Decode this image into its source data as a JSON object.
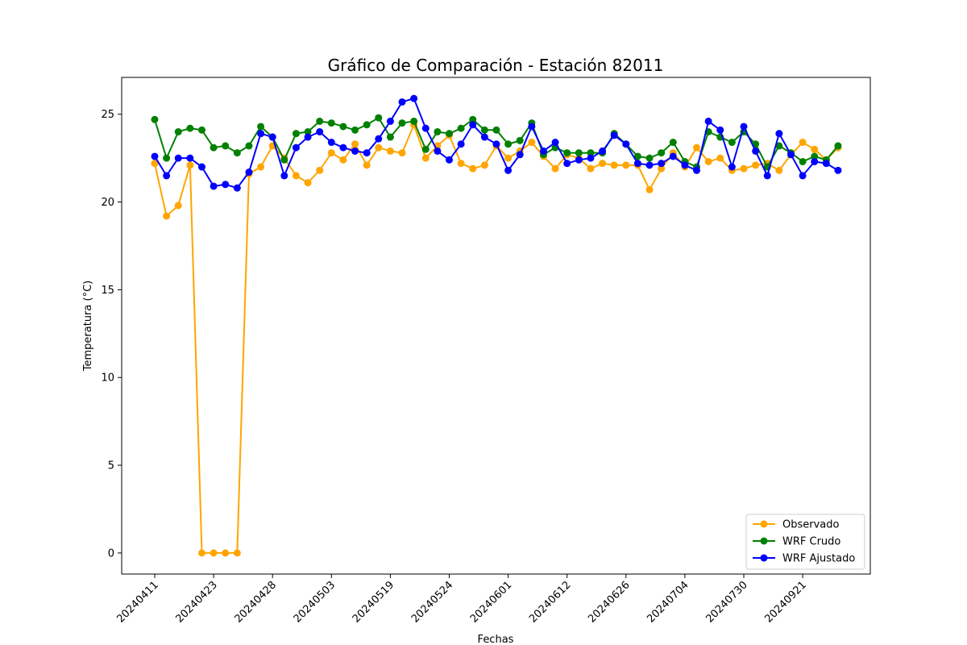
{
  "chart_data": {
    "type": "line",
    "title": "Gráfico de Comparación - Estación 82011",
    "xlabel": "Fechas",
    "ylabel": "Temperatura (°C)",
    "ylim": [
      -1.2,
      27.1
    ],
    "yticks": [
      0,
      5,
      10,
      15,
      20,
      25
    ],
    "grid": false,
    "legend_position": "lower-right",
    "x_tick_labels": [
      "20240411",
      "20240423",
      "20240428",
      "20240503",
      "20240519",
      "20240524",
      "20240601",
      "20240612",
      "20240626",
      "20240704",
      "20240730",
      "20240921"
    ],
    "series": [
      {
        "name": "Observado",
        "color": "#ffa500",
        "values": [
          22.2,
          19.2,
          19.8,
          22.1,
          0,
          0,
          0,
          0,
          21.6,
          22.0,
          23.2,
          22.5,
          21.5,
          21.1,
          21.8,
          22.8,
          22.4,
          23.3,
          22.1,
          23.1,
          22.9,
          22.8,
          24.4,
          22.5,
          23.2,
          23.8,
          22.2,
          21.9,
          22.1,
          23.2,
          22.5,
          22.9,
          23.4,
          22.6,
          21.9,
          22.7,
          22.5,
          21.9,
          22.2,
          22.1,
          22.1,
          22.1,
          20.7,
          21.9,
          22.8,
          22.0,
          23.1,
          22.3,
          22.5,
          21.8,
          21.9,
          22.1,
          22.2,
          21.8,
          22.7,
          23.4,
          23.0,
          22.4,
          23.1
        ]
      },
      {
        "name": "WRF Crudo",
        "color": "#008000",
        "values": [
          24.7,
          22.5,
          24.0,
          24.2,
          24.1,
          23.1,
          23.2,
          22.8,
          23.2,
          24.3,
          23.7,
          22.4,
          23.9,
          24.0,
          24.6,
          24.5,
          24.3,
          24.1,
          24.4,
          24.8,
          23.7,
          24.5,
          24.6,
          23.0,
          24.0,
          23.9,
          24.2,
          24.7,
          24.1,
          24.1,
          23.3,
          23.5,
          24.5,
          22.7,
          23.1,
          22.8,
          22.8,
          22.8,
          22.8,
          23.9,
          23.3,
          22.6,
          22.5,
          22.8,
          23.4,
          22.3,
          22.0,
          24.0,
          23.7,
          23.4,
          24.0,
          23.3,
          22.0,
          23.2,
          22.8,
          22.3,
          22.6,
          22.4,
          23.2
        ]
      },
      {
        "name": "WRF Ajustado",
        "color": "#0000ff",
        "values": [
          22.6,
          21.5,
          22.5,
          22.5,
          22.0,
          20.9,
          21.0,
          20.8,
          21.7,
          23.9,
          23.7,
          21.5,
          23.1,
          23.7,
          24.0,
          23.4,
          23.1,
          22.9,
          22.8,
          23.6,
          24.6,
          25.7,
          25.9,
          24.2,
          22.9,
          22.4,
          23.3,
          24.4,
          23.7,
          23.3,
          21.8,
          22.7,
          24.3,
          22.9,
          23.4,
          22.2,
          22.4,
          22.5,
          22.9,
          23.8,
          23.3,
          22.2,
          22.1,
          22.2,
          22.6,
          22.1,
          21.8,
          24.6,
          24.1,
          22.0,
          24.3,
          22.9,
          21.5,
          23.9,
          22.7,
          21.5,
          22.3,
          22.2,
          21.8
        ]
      }
    ]
  }
}
